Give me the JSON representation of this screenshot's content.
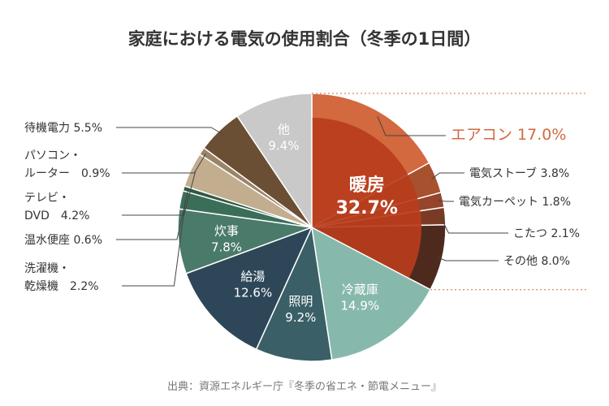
{
  "chart_data": {
    "type": "pie",
    "title": "家庭における電気の使用割合（冬季の1日間）",
    "source": "出典：資源エネルギー庁『冬季の省エネ・節電メニュー』",
    "start": "top, clockwise",
    "slices": [
      {
        "label": "暖房",
        "value": 32.7,
        "value_label": "32.7%",
        "color": "#b83d1c",
        "sub": [
          {
            "label": "エアコン",
            "value": 17.0,
            "value_label": "17.0%",
            "color": "#d2693f"
          },
          {
            "label": "電気ストーブ",
            "value": 3.8,
            "value_label": "3.8%",
            "color": "#a7512e"
          },
          {
            "label": "電気カーペット",
            "value": 1.8,
            "value_label": "1.8%",
            "color": "#94452b"
          },
          {
            "label": "こたつ",
            "value": 2.1,
            "value_label": "2.1%",
            "color": "#7a3b26"
          },
          {
            "label": "その他",
            "value": 8.0,
            "value_label": "8.0%",
            "color": "#4e2a1e"
          }
        ]
      },
      {
        "label": "冷蔵庫",
        "value": 14.9,
        "value_label": "14.9%",
        "color": "#86b9ac"
      },
      {
        "label": "照明",
        "value": 9.2,
        "value_label": "9.2%",
        "color": "#3a5f66"
      },
      {
        "label": "給湯",
        "value": 12.6,
        "value_label": "12.6%",
        "color": "#2e4758"
      },
      {
        "label": "炊事",
        "value": 7.8,
        "value_label": "7.8%",
        "color": "#4a7a6a"
      },
      {
        "label": "洗濯機・\n乾燥機",
        "value": 2.2,
        "value_label": "2.2%",
        "color": "#3b6e58"
      },
      {
        "label": "温水便座",
        "value": 0.6,
        "value_label": "0.6%",
        "color": "#2f5a44"
      },
      {
        "label": "テレビ・\nDVD",
        "value": 4.2,
        "value_label": "4.2%",
        "color": "#c2ad8f"
      },
      {
        "label": "パソコン・\nルーター",
        "value": 0.9,
        "value_label": "0.9%",
        "color": "#9a8468"
      },
      {
        "label": "待機電力",
        "value": 5.5,
        "value_label": "5.5%",
        "color": "#6b4f34"
      },
      {
        "label": "他",
        "value": 9.4,
        "value_label": "9.4%",
        "color": "#c9c9c9"
      }
    ]
  }
}
